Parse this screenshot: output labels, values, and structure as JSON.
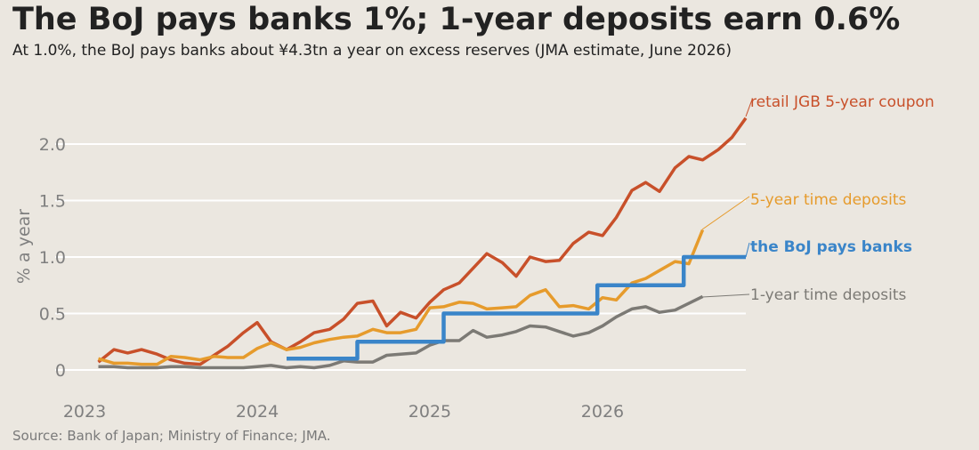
{
  "title": "The BoJ pays banks 1%; 1-year deposits earn 0.6%",
  "subtitle": "At 1.0%, the BoJ pays banks about ¥4.3tn a year on excess reserves (JMA estimate, June 2026)",
  "source": "Source: Bank of Japan; Ministry of Finance; JMA.",
  "chart_data": {
    "type": "line",
    "ylabel": "% a year",
    "xlabel": "",
    "xlim": [
      2023.0,
      2026.83
    ],
    "ylim": [
      -0.15,
      2.3
    ],
    "y_ticks": [
      0,
      0.5,
      1.0,
      1.5,
      2.0
    ],
    "y_tick_labels": [
      "0",
      "0.5",
      "1.0",
      "1.5",
      "2.0"
    ],
    "x_ticks": [
      2023,
      2024,
      2025,
      2026
    ],
    "x_tick_labels": [
      "2023",
      "2024",
      "2025",
      "2026"
    ],
    "grid": "horizontal",
    "legend": "direct labels at right end of lines",
    "series": [
      {
        "name": "retail JGB 5-year coupon",
        "color": "#c8502a",
        "style": "line",
        "label_bold": false,
        "x": [
          2023.08,
          2023.17,
          2023.25,
          2023.33,
          2023.42,
          2023.5,
          2023.58,
          2023.67,
          2023.75,
          2023.83,
          2023.92,
          2024.0,
          2024.08,
          2024.17,
          2024.25,
          2024.33,
          2024.42,
          2024.5,
          2024.58,
          2024.67,
          2024.75,
          2024.83,
          2024.92,
          2025.0,
          2025.08,
          2025.17,
          2025.25,
          2025.33,
          2025.42,
          2025.5,
          2025.58,
          2025.67,
          2025.75,
          2025.83,
          2025.92,
          2026.0,
          2026.08,
          2026.17,
          2026.25,
          2026.33,
          2026.42,
          2026.5,
          2026.58,
          2026.67,
          2026.75,
          2026.83
        ],
        "values": [
          0.07,
          0.18,
          0.15,
          0.18,
          0.14,
          0.09,
          0.06,
          0.05,
          0.13,
          0.21,
          0.33,
          0.42,
          0.25,
          0.18,
          0.25,
          0.33,
          0.36,
          0.45,
          0.59,
          0.61,
          0.39,
          0.51,
          0.46,
          0.6,
          0.71,
          0.77,
          0.9,
          1.03,
          0.95,
          0.83,
          1.0,
          0.96,
          0.97,
          1.12,
          1.22,
          1.19,
          1.35,
          1.59,
          1.66,
          1.58,
          1.79,
          1.89,
          1.86,
          1.95,
          2.06,
          2.23
        ]
      },
      {
        "name": "5-year time deposits",
        "color": "#e69b2c",
        "style": "line",
        "label_bold": false,
        "x": [
          2023.08,
          2023.17,
          2023.25,
          2023.33,
          2023.42,
          2023.5,
          2023.58,
          2023.67,
          2023.75,
          2023.83,
          2023.92,
          2024.0,
          2024.08,
          2024.17,
          2024.25,
          2024.33,
          2024.42,
          2024.5,
          2024.58,
          2024.67,
          2024.75,
          2024.83,
          2024.92,
          2025.0,
          2025.08,
          2025.17,
          2025.25,
          2025.33,
          2025.42,
          2025.5,
          2025.58,
          2025.67,
          2025.75,
          2025.83,
          2025.92,
          2026.0,
          2026.08,
          2026.17,
          2026.25,
          2026.33,
          2026.42,
          2026.5,
          2026.58
        ],
        "values": [
          0.1,
          0.06,
          0.06,
          0.05,
          0.05,
          0.12,
          0.11,
          0.09,
          0.12,
          0.11,
          0.11,
          0.19,
          0.24,
          0.18,
          0.2,
          0.24,
          0.27,
          0.29,
          0.3,
          0.36,
          0.33,
          0.33,
          0.36,
          0.55,
          0.56,
          0.6,
          0.59,
          0.54,
          0.55,
          0.56,
          0.66,
          0.71,
          0.56,
          0.57,
          0.54,
          0.64,
          0.62,
          0.77,
          0.81,
          0.88,
          0.96,
          0.94,
          1.24
        ]
      },
      {
        "name": "the BoJ pays banks",
        "color": "#3a85c9",
        "style": "step",
        "label_bold": true,
        "x": [
          2024.17,
          2024.58,
          2024.58,
          2025.08,
          2025.08,
          2025.97,
          2025.97,
          2026.47,
          2026.47,
          2026.83
        ],
        "values": [
          0.1,
          0.1,
          0.25,
          0.25,
          0.5,
          0.5,
          0.75,
          0.75,
          1.0,
          1.0
        ]
      },
      {
        "name": "1-year time deposits",
        "color": "#7c7a75",
        "style": "line",
        "label_bold": false,
        "x": [
          2023.08,
          2023.17,
          2023.25,
          2023.33,
          2023.42,
          2023.5,
          2023.58,
          2023.67,
          2023.75,
          2023.83,
          2023.92,
          2024.0,
          2024.08,
          2024.17,
          2024.25,
          2024.33,
          2024.42,
          2024.5,
          2024.58,
          2024.67,
          2024.75,
          2024.83,
          2024.92,
          2025.0,
          2025.08,
          2025.17,
          2025.25,
          2025.33,
          2025.42,
          2025.5,
          2025.58,
          2025.67,
          2025.75,
          2025.83,
          2025.92,
          2026.0,
          2026.08,
          2026.17,
          2026.25,
          2026.33,
          2026.42,
          2026.5,
          2026.58
        ],
        "values": [
          0.03,
          0.03,
          0.02,
          0.02,
          0.02,
          0.03,
          0.03,
          0.02,
          0.02,
          0.02,
          0.02,
          0.03,
          0.04,
          0.02,
          0.03,
          0.02,
          0.04,
          0.08,
          0.07,
          0.07,
          0.13,
          0.14,
          0.15,
          0.22,
          0.26,
          0.26,
          0.35,
          0.29,
          0.31,
          0.34,
          0.39,
          0.38,
          0.34,
          0.3,
          0.33,
          0.39,
          0.47,
          0.54,
          0.56,
          0.51,
          0.53,
          0.59,
          0.65
        ]
      }
    ]
  }
}
